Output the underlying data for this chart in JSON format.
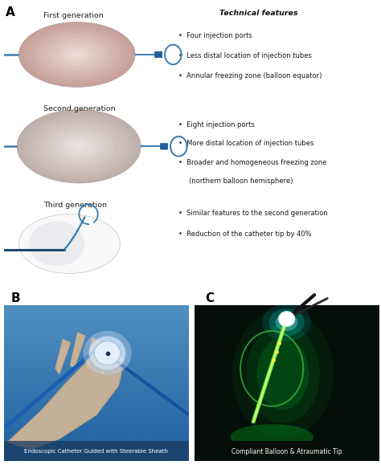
{
  "panel_A_label": "A",
  "panel_B_label": "B",
  "panel_C_label": "C",
  "gen1_title": "First generation",
  "gen2_title": "Second generation",
  "gen3_title": "Third generation",
  "tech_features_title": "Technical features",
  "gen1_bullets": [
    "Four injection ports",
    "Less distal location of injection tubes",
    "Annular freezing zone (balloon equator)"
  ],
  "gen2_bullets": [
    "Eight injection ports",
    "More distal location of injection tubes",
    "Broader and homogeneous freezing zone",
    "(northern balloon hemisphere)"
  ],
  "gen3_bullets": [
    "Similar features to the second generation",
    "Reduction of the catheter tip by 40%"
  ],
  "caption_B": "Endoscopic Catheter Guided with Steerable Sheath",
  "caption_C": "Compliant Balloon & Atraumatic Tip",
  "bg_color": "#ffffff",
  "text_color": "#1a1a1a",
  "caption_color_B": "#ffffff",
  "caption_color_C": "#ffffff",
  "balloon1_fill_center": "#f0e0dc",
  "balloon1_fill_edge": "#c8a09a",
  "balloon2_fill_center": "#ede8e5",
  "balloon2_fill_edge": "#c0b0aa",
  "balloon3_fill": "#f0f0f0",
  "catheter_blue": "#3a7ab0",
  "catheter_dark": "#1a4060",
  "panel_B_bg_top": "#5090c0",
  "panel_B_bg_bot": "#2060a0",
  "panel_C_bg": "#050e08",
  "bullet_char": "•"
}
